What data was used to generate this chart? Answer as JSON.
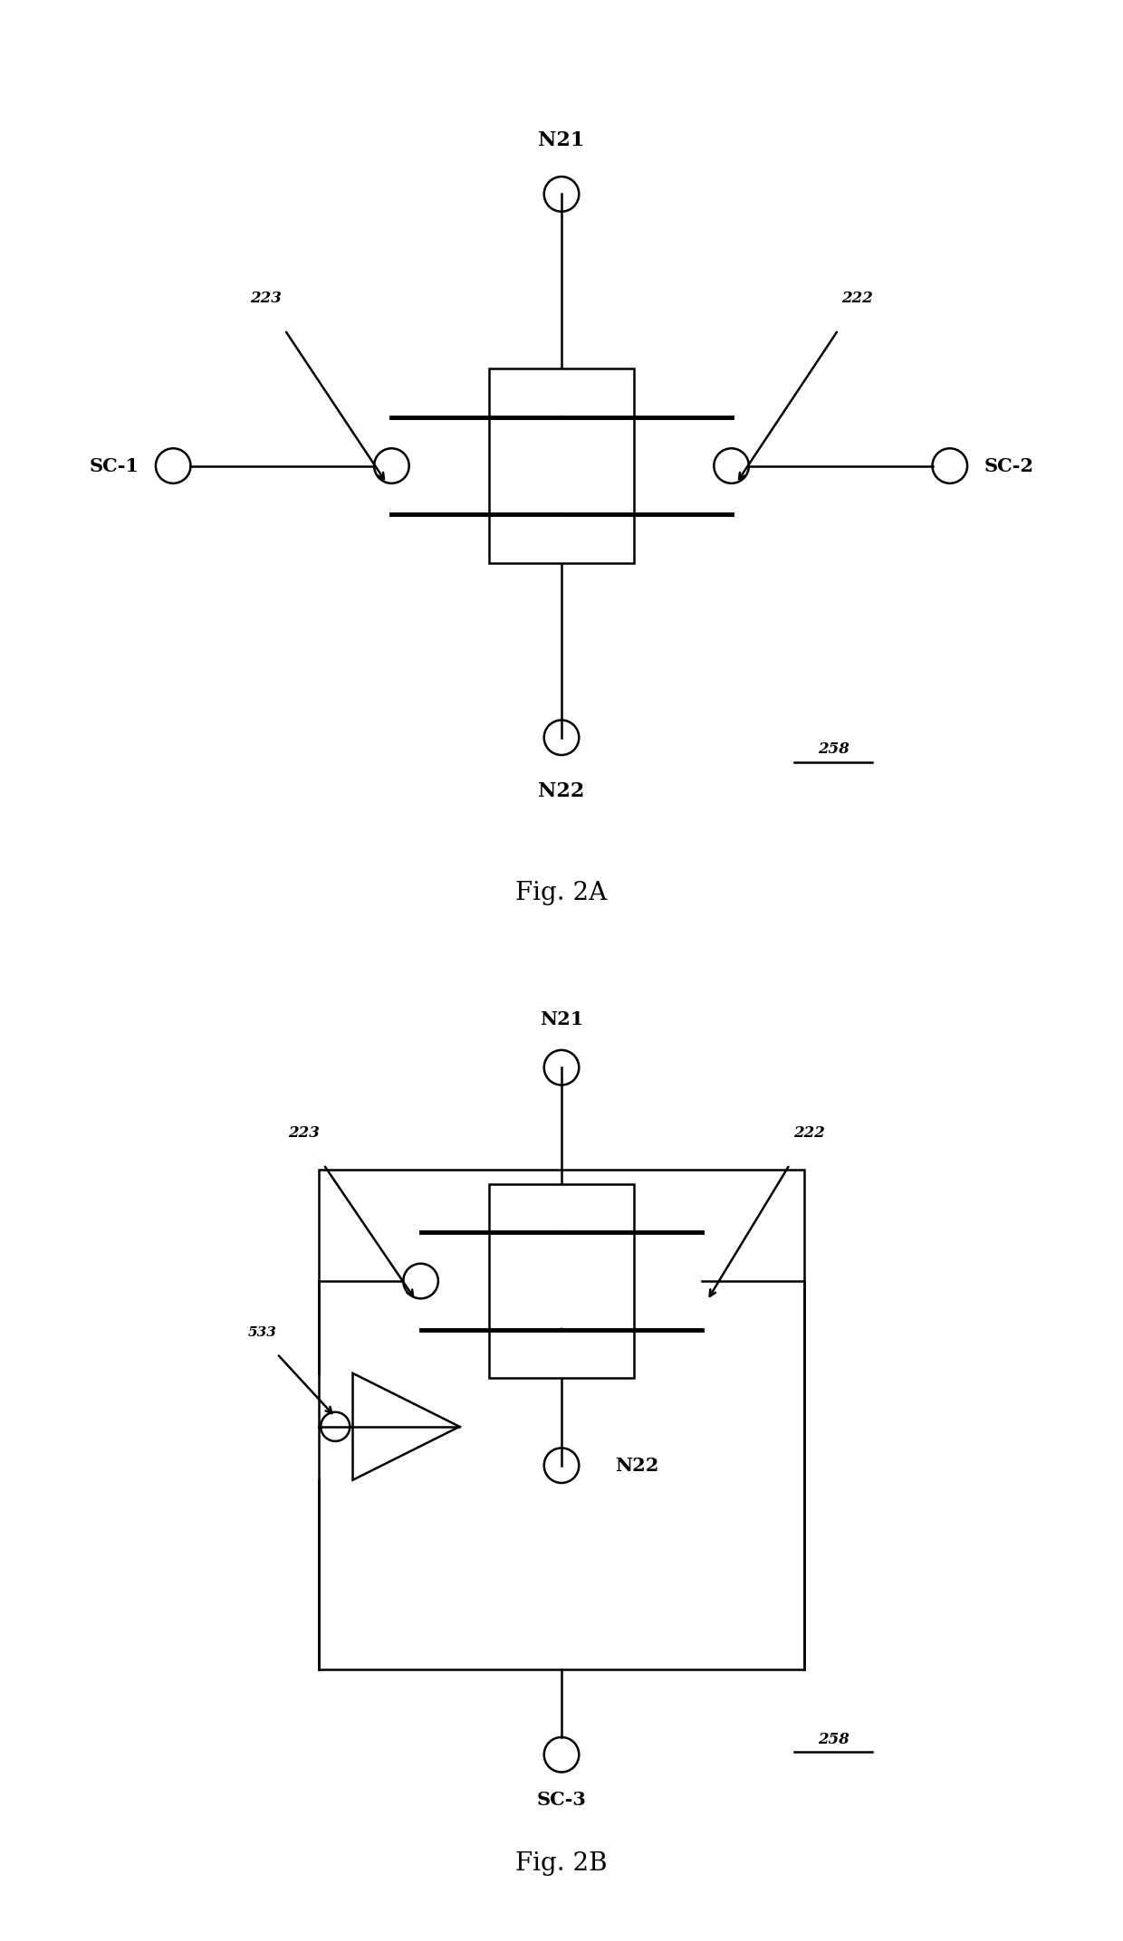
{
  "line_color": "#000000",
  "bg_color": "#ffffff",
  "lw": 1.8,
  "lw_thick": 3.5,
  "fig2a_title": "Fig. 2A",
  "fig2b_title": "Fig. 2B",
  "label_223": "223",
  "label_222": "222",
  "label_N21": "N21",
  "label_N22": "N22",
  "label_SC1": "SC-1",
  "label_SC2": "SC-2",
  "label_SC3": "SC-3",
  "label_533": "533",
  "label_258": "258"
}
